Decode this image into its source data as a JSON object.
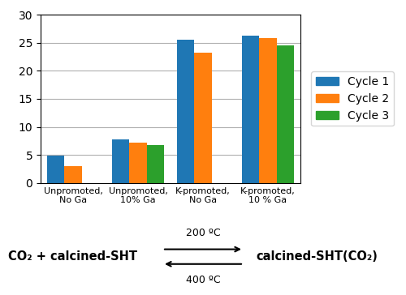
{
  "chart_data": {
    "type": "bar",
    "categories": [
      "Unpromoted,\nNo Ga",
      "Unpromoted,\n10% Ga",
      "K-promoted,\nNo Ga",
      "K-promoted,\n10 % Ga"
    ],
    "series": [
      {
        "name": "Cycle 1",
        "values": [
          4.8,
          7.8,
          25.5,
          26.2
        ]
      },
      {
        "name": "Cycle 2",
        "values": [
          3.0,
          7.2,
          23.3,
          25.8
        ]
      },
      {
        "name": "Cycle 3",
        "values": [
          null,
          6.8,
          null,
          24.5
        ]
      }
    ],
    "ylim": [
      0,
      30
    ],
    "yticks": [
      0,
      5,
      10,
      15,
      20,
      25,
      30
    ],
    "grid": true,
    "legend": "right",
    "annotations": [
      "CO₂ + calcined-SHT",
      "200 ºC",
      "400 ºC",
      "calcined-SHT(CO₂)"
    ]
  }
}
